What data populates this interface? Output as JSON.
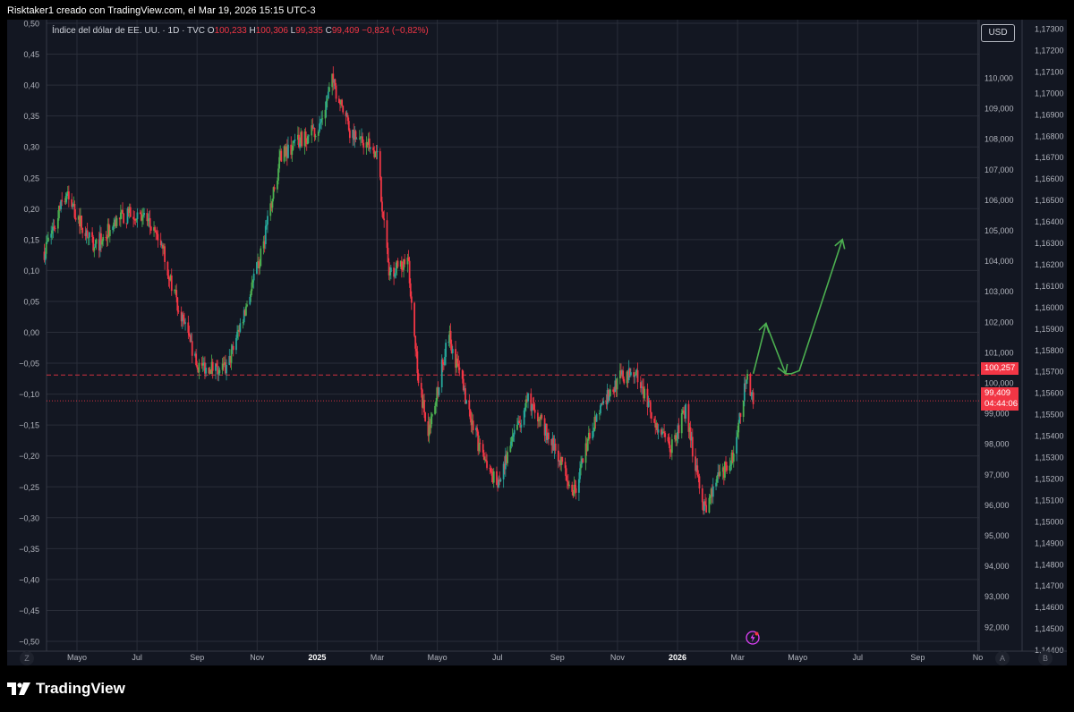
{
  "header": {
    "text": "Risktaker1 creado con TradingView.com, el Mar 19, 2026 15:15 UTC-3"
  },
  "legend": {
    "symbol": "Índice del dólar de EE. UU. · 1D · TVC",
    "o_label": "O",
    "o_value": "100,233",
    "h_label": "H",
    "h_value": "100,306",
    "l_label": "L",
    "l_value": "99,335",
    "c_label": "C",
    "c_value": "99,409",
    "change": "−0,824 (−0,82%)"
  },
  "currency_button": "USD",
  "last_price_tags": {
    "line_price": "100,257",
    "current_price": "99,409",
    "countdown": "04:44:06"
  },
  "footer": {
    "brand": "TradingView",
    "z_label": "Z",
    "a_label": "A",
    "b_label": "B"
  },
  "colors": {
    "up": "#22ab94",
    "up_bright": "#4caf50",
    "down": "#f23645",
    "arrow": "#4caf50",
    "grid": "#2a2e39",
    "text": "#b2b5be"
  },
  "icons": {
    "brand": "tradingview-logo-icon",
    "flash": "lightning-icon"
  },
  "chart_data": {
    "type": "candlestick",
    "title": "Índice del dólar de EE. UU.",
    "interval": "1D",
    "source": "TVC",
    "left_axis": {
      "ticks": [
        "0,50",
        "0,45",
        "0,40",
        "0,35",
        "0,30",
        "0,25",
        "0,20",
        "0,15",
        "0,10",
        "0,05",
        "0,00",
        "−0,05",
        "−0,10",
        "−0,15",
        "−0,20",
        "−0,25",
        "−0,30",
        "−0,35",
        "−0,40",
        "−0,45",
        "−0,50"
      ],
      "range": [
        -0.5,
        0.5
      ]
    },
    "right_axis_1": {
      "ticks": [
        "110,000",
        "109,000",
        "108,000",
        "107,000",
        "106,000",
        "105,000",
        "104,000",
        "103,000",
        "102,000",
        "101,000",
        "100,000",
        "99,000",
        "98,000",
        "97,000",
        "96,000",
        "95,000",
        "94,000",
        "93,000",
        "92,000"
      ],
      "range": [
        91.2,
        111.5
      ]
    },
    "right_axis_2": {
      "ticks": [
        "1,17300",
        "1,17200",
        "1,17100",
        "1,17000",
        "1,16900",
        "1,16800",
        "1,16700",
        "1,16600",
        "1,16500",
        "1,16400",
        "1,16300",
        "1,16200",
        "1,16100",
        "1,16000",
        "1,15900",
        "1,15800",
        "1,15700",
        "1,15600",
        "1,15500",
        "1,15400",
        "1,15300",
        "1,15200",
        "1,15100",
        "1,15000",
        "1,14900",
        "1,14800",
        "1,14700",
        "1,14600",
        "1,14500",
        "1,14400"
      ]
    },
    "x_axis": {
      "ticks": [
        "Mayo",
        "Jul",
        "Sep",
        "Nov",
        "2025",
        "Mar",
        "Mayo",
        "Jul",
        "Sep",
        "Nov",
        "2026",
        "Mar",
        "Mayo",
        "Jul",
        "Sep",
        "No"
      ],
      "bold": [
        "2025",
        "2026"
      ]
    },
    "path_points": [
      {
        "date": "2024-03-25",
        "price": 104.3
      },
      {
        "date": "2024-04-16",
        "price": 106.2
      },
      {
        "date": "2024-05-15",
        "price": 104.4
      },
      {
        "date": "2024-06-10",
        "price": 105.4
      },
      {
        "date": "2024-07-03",
        "price": 105.6
      },
      {
        "date": "2024-07-25",
        "price": 104.3
      },
      {
        "date": "2024-08-05",
        "price": 102.9
      },
      {
        "date": "2024-08-27",
        "price": 100.6
      },
      {
        "date": "2024-09-27",
        "price": 100.4
      },
      {
        "date": "2024-10-31",
        "price": 104.0
      },
      {
        "date": "2024-11-22",
        "price": 107.5
      },
      {
        "date": "2024-12-31",
        "price": 108.4
      },
      {
        "date": "2025-01-13",
        "price": 109.9
      },
      {
        "date": "2025-01-31",
        "price": 108.3
      },
      {
        "date": "2025-02-28",
        "price": 107.5
      },
      {
        "date": "2025-03-12",
        "price": 103.6
      },
      {
        "date": "2025-03-31",
        "price": 104.1
      },
      {
        "date": "2025-04-11",
        "price": 100.2
      },
      {
        "date": "2025-04-21",
        "price": 98.3
      },
      {
        "date": "2025-05-12",
        "price": 101.6
      },
      {
        "date": "2025-06-12",
        "price": 97.9
      },
      {
        "date": "2025-07-01",
        "price": 96.6
      },
      {
        "date": "2025-07-14",
        "price": 97.9
      },
      {
        "date": "2025-08-01",
        "price": 99.4
      },
      {
        "date": "2025-08-25",
        "price": 98.1
      },
      {
        "date": "2025-09-17",
        "price": 96.4
      },
      {
        "date": "2025-10-10",
        "price": 99.0
      },
      {
        "date": "2025-11-04",
        "price": 100.2
      },
      {
        "date": "2025-11-20",
        "price": 100.3
      },
      {
        "date": "2025-12-10",
        "price": 98.5
      },
      {
        "date": "2025-12-24",
        "price": 97.8
      },
      {
        "date": "2026-01-09",
        "price": 99.1
      },
      {
        "date": "2026-01-27",
        "price": 95.8
      },
      {
        "date": "2026-02-11",
        "price": 96.8
      },
      {
        "date": "2026-02-27",
        "price": 97.7
      },
      {
        "date": "2026-03-13",
        "price": 100.3
      },
      {
        "date": "2026-03-19",
        "price": 99.4
      }
    ],
    "horizontal_lines": [
      {
        "price": 100.257,
        "style": "dashed",
        "color": "#f23645"
      },
      {
        "price": 99.409,
        "style": "dotted",
        "color": "#f23645"
      }
    ],
    "projection_arrow": [
      {
        "date": "2026-03-19",
        "price": 100.3
      },
      {
        "date": "2026-04-01",
        "price": 101.95
      },
      {
        "date": "2026-04-21",
        "price": 100.3
      },
      {
        "date": "2026-04-27",
        "price": 100.3
      },
      {
        "date": "2026-05-05",
        "price": 100.4
      },
      {
        "date": "2026-06-18",
        "price": 104.7
      }
    ]
  }
}
